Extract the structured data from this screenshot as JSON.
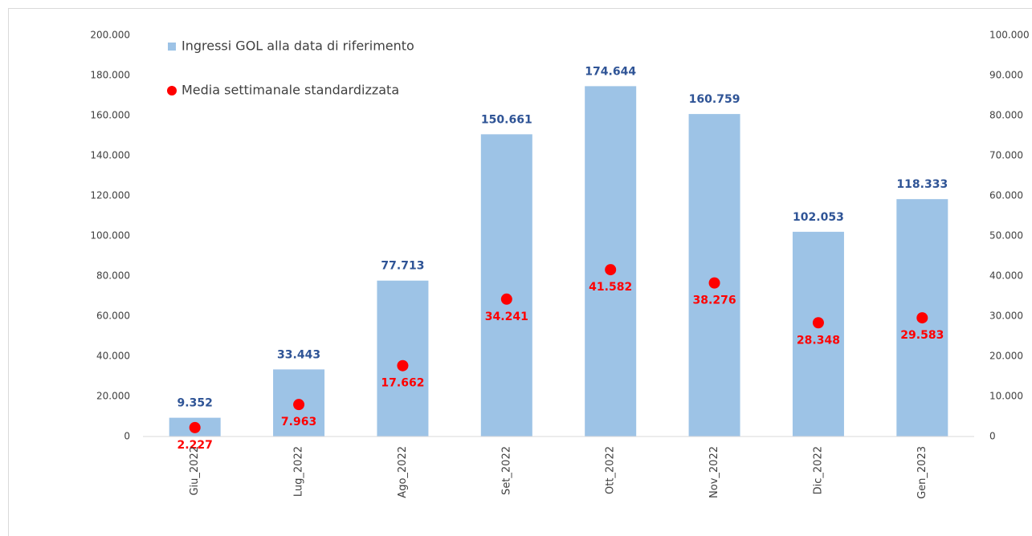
{
  "chart_data": {
    "type": "bar",
    "categories": [
      "Giu_2022",
      "Lug_2022",
      "Ago_2022",
      "Set_2022",
      "Ott_2022",
      "Nov_2022",
      "Dic_2022",
      "Gen_2023"
    ],
    "series": [
      {
        "name": "Ingressi GOL alla data di riferimento",
        "color": "#9dc3e6",
        "values": [
          9352,
          33443,
          77713,
          150661,
          174644,
          160759,
          102053,
          118333
        ],
        "value_labels": [
          "9.352",
          "33.443",
          "77.713",
          "150.661",
          "174.644",
          "160.759",
          "102.053",
          "118.333"
        ],
        "label_color": "#2f5496"
      },
      {
        "name": "Media settimanale standardizzata",
        "color": "#ff0000",
        "type": "scatter",
        "axis": "y2",
        "values": [
          2227,
          7963,
          17662,
          34241,
          41582,
          38276,
          28348,
          29583
        ],
        "value_labels": [
          "2.227",
          "7.963",
          "17.662",
          "34.241",
          "41.582",
          "38.276",
          "28.348",
          "29.583"
        ],
        "label_color": "#ff0000"
      }
    ],
    "ylim": [
      0,
      200000
    ],
    "yticks": [
      0,
      {
        "value": 20000,
        "label": "20.000"
      },
      {
        "value": 40000,
        "label": "40.000"
      },
      {
        "value": 60000,
        "label": "60.000"
      },
      {
        "value": 80000,
        "label": "80.000"
      },
      {
        "value": 100000,
        "label": "100.000"
      },
      {
        "value": 120000,
        "label": "120.000"
      },
      {
        "value": 140000,
        "label": "140.000"
      },
      {
        "value": 160000,
        "label": "160.000"
      },
      {
        "value": 180000,
        "label": "180.000"
      },
      {
        "value": 200000,
        "label": "200.000"
      }
    ],
    "y2lim": [
      0,
      100000
    ],
    "y2ticks": [
      0,
      {
        "value": 10000,
        "label": "10.000"
      },
      {
        "value": 20000,
        "label": "20.000"
      },
      {
        "value": 30000,
        "label": "30.000"
      },
      {
        "value": 40000,
        "label": "40.000"
      },
      {
        "value": 50000,
        "label": "50.000"
      },
      {
        "value": 60000,
        "label": "60.000"
      },
      {
        "value": 70000,
        "label": "70.000"
      },
      {
        "value": 80000,
        "label": "80.000"
      },
      {
        "value": 90000,
        "label": "90.000"
      },
      {
        "value": 100000,
        "label": "100.000"
      }
    ],
    "grid": false,
    "legend": "top-left"
  }
}
